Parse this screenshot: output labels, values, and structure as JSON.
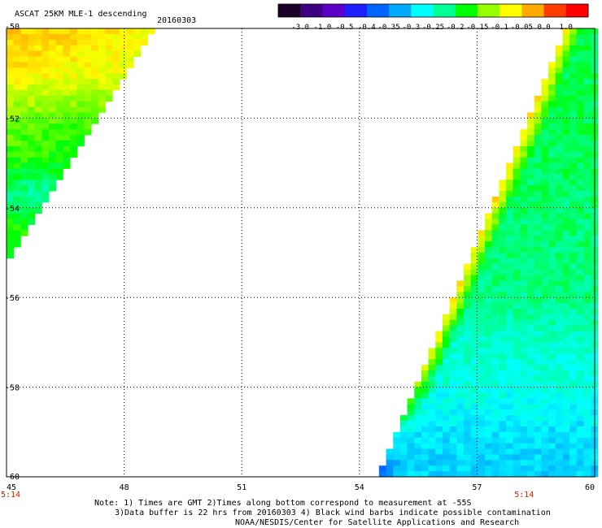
{
  "title": "ASCAT 25KM MLE-1 descending",
  "date": "20160303",
  "colorbar": {
    "ticks": [
      "-3.0",
      "-1.0",
      "-0.5",
      "-0.4",
      "-0.35",
      "-0.3",
      "-0.25",
      "-0.2",
      "-0.15",
      "-0.1",
      "-0.05",
      "0.0",
      "1.0"
    ],
    "colors": [
      "#1a0026",
      "#3d0080",
      "#5a00c8",
      "#1e1eff",
      "#0064ff",
      "#00aaff",
      "#00ffff",
      "#00ff96",
      "#00ff00",
      "#96ff00",
      "#ffff00",
      "#ffaa00",
      "#ff3c00",
      "#ff0000"
    ]
  },
  "time_labels": [
    {
      "text": "5:14",
      "lon": 45
    },
    {
      "text": "5:14",
      "lon": 58.2
    }
  ],
  "notes": {
    "line1": "Note: 1) Times are GMT 2)Times along bottom correspond to measurement at -55S",
    "line2": "3)Data buffer is 22 hrs from 20160303 4) Black wind barbs indicate possible contamination",
    "line3": "NOAA/NESDIS/Center for Satellite Applications and Research"
  },
  "chart_data": {
    "type": "heatmap",
    "title": "ASCAT 25KM MLE-1 descending",
    "subtitle": "20160303",
    "xlabel": "",
    "ylabel": "",
    "xlim": [
      45,
      60
    ],
    "ylim": [
      -60,
      -50
    ],
    "x_ticks": [
      45,
      48,
      51,
      54,
      57,
      60
    ],
    "y_ticks": [
      -50,
      -52,
      -54,
      -56,
      -58,
      -60
    ],
    "x_tick_labels": [
      "45",
      "48",
      "51",
      "54",
      "57",
      "60"
    ],
    "y_tick_labels": [
      "-50",
      "-52",
      "-54",
      "-56",
      "-58",
      "-60"
    ],
    "grid": true,
    "value_scale": [
      "-3.0",
      "-1.0",
      "-0.5",
      "-0.4",
      "-0.35",
      "-0.3",
      "-0.25",
      "-0.2",
      "-0.15",
      "-0.1",
      "-0.05",
      "0.0",
      "1.0"
    ],
    "swaths": [
      {
        "name": "",
        "region_lon_lat": [
          [
            45,
            -50
          ],
          [
            48.8,
            -50
          ],
          [
            45,
            -55.3
          ]
        ],
        "typical_values": {
          "north": -0.07,
          "center": -0.17,
          "south": -0.22
        },
        "lat_value_profile": [
          [
            -50.2,
            -0.06
          ],
          [
            -51.0,
            -0.08
          ],
          [
            -52.0,
            -0.15
          ],
          [
            -53.0,
            -0.18
          ],
          [
            -53.7,
            -0.24
          ],
          [
            -54.5,
            -0.18
          ],
          [
            -55.2,
            -0.22
          ]
        ]
      },
      {
        "name": "",
        "region_lon_lat": [
          [
            59.3,
            -50
          ],
          [
            60,
            -50
          ],
          [
            60,
            -60
          ],
          [
            54.5,
            -60
          ]
        ],
        "typical_values": {
          "north": -0.19,
          "center": -0.24,
          "south": -0.3
        },
        "lat_value_profile": [
          [
            -50.5,
            -0.2
          ],
          [
            -52.0,
            -0.2
          ],
          [
            -54.0,
            -0.21
          ],
          [
            -56.0,
            -0.22
          ],
          [
            -57.0,
            -0.25
          ],
          [
            -58.0,
            -0.26
          ],
          [
            -59.0,
            -0.29
          ],
          [
            -59.8,
            -0.3
          ]
        ],
        "west_edge_values": [
          [
            -57.0,
            -0.03
          ],
          [
            -57.5,
            -0.06
          ],
          [
            -58.0,
            -0.09
          ],
          [
            -59.9,
            -0.38
          ]
        ]
      }
    ]
  }
}
